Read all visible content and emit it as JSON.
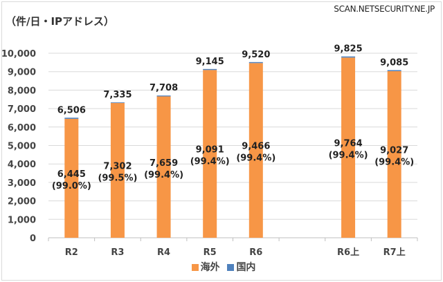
{
  "header": {
    "unit_label": "（件/日・IPアドレス）",
    "watermark": "SCAN.NETSECURITY.NE.JP"
  },
  "chart_data": {
    "type": "bar",
    "stacked": true,
    "title": "",
    "ylabel": "（件/日・IPアドレス）",
    "ylim": [
      0,
      10000
    ],
    "yticks": [
      "0",
      "1,000",
      "2,000",
      "3,000",
      "4,000",
      "5,000",
      "6,000",
      "7,000",
      "8,000",
      "9,000",
      "10,000"
    ],
    "grid": true,
    "legend_position": "bottom",
    "categories": [
      "R2",
      "R3",
      "R4",
      "R5",
      "R6",
      "",
      "R6上",
      "R7上"
    ],
    "series": [
      {
        "name": "海外",
        "color": "#f79646",
        "values": [
          6445,
          7302,
          7659,
          9091,
          9466,
          null,
          9764,
          9027
        ],
        "labels": [
          "6,445",
          "7,302",
          "7,659",
          "9,091",
          "9,466",
          "",
          "9,764",
          "9,027"
        ],
        "pct_labels": [
          "(99.0%)",
          "(99.5%)",
          "(99.4%)",
          "(99.4%)",
          "(99.4%)",
          "",
          "(99.4%)",
          "(99.4%)"
        ]
      },
      {
        "name": "国内",
        "color": "#4f81bd",
        "values": [
          61,
          33,
          49,
          54,
          54,
          null,
          61,
          58
        ]
      }
    ],
    "totals": [
      6506,
      7335,
      7708,
      9145,
      9520,
      null,
      9825,
      9085
    ],
    "total_labels": [
      "6,506",
      "7,335",
      "7,708",
      "9,145",
      "9,520",
      "",
      "9,825",
      "9,085"
    ]
  }
}
